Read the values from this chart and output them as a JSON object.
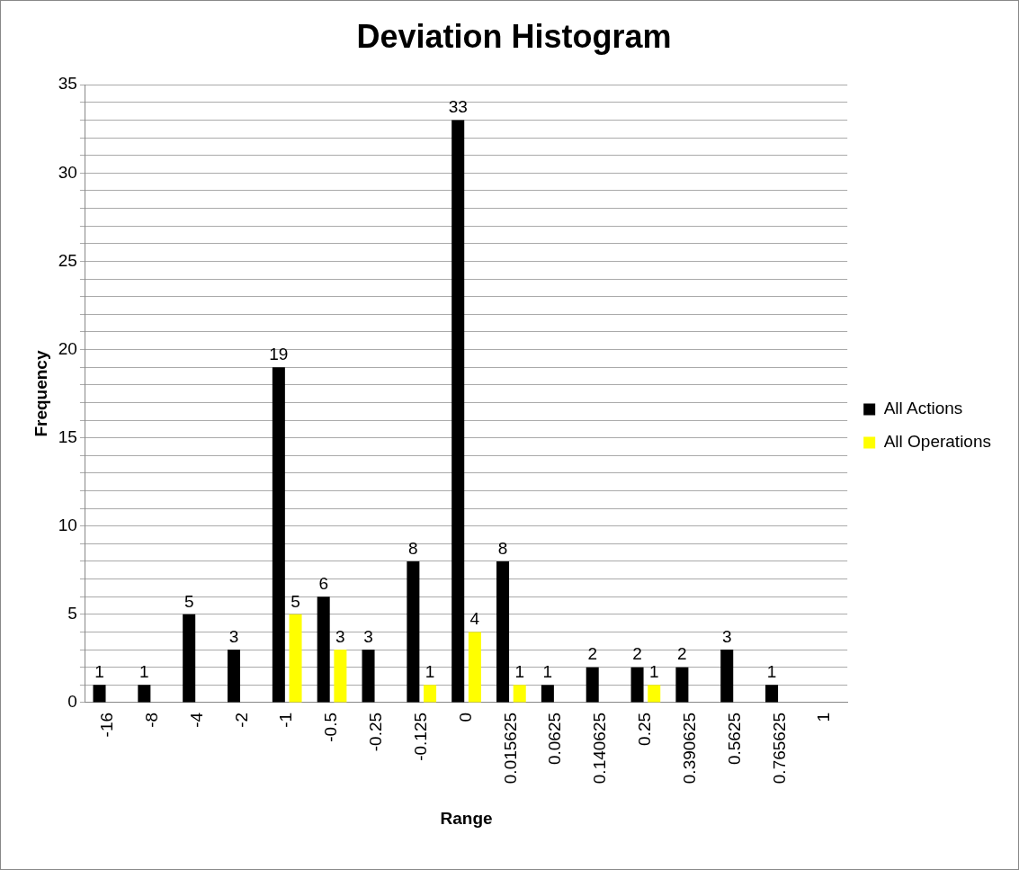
{
  "chart_data": {
    "type": "bar",
    "title": "Deviation Histogram",
    "xlabel": "Range",
    "ylabel": "Frequency",
    "categories": [
      "-16",
      "-8",
      "-4",
      "-2",
      "-1",
      "-0.5",
      "-0.25",
      "-0.125",
      "0",
      "0.015625",
      "0.0625",
      "0.140625",
      "0.25",
      "0.390625",
      "0.5625",
      "0.765625",
      "1"
    ],
    "series": [
      {
        "name": "All Actions",
        "color": "#000000",
        "values": [
          1,
          1,
          5,
          3,
          19,
          6,
          3,
          8,
          33,
          8,
          1,
          2,
          2,
          2,
          3,
          1,
          null
        ]
      },
      {
        "name": "All Operations",
        "color": "#ffff00",
        "values": [
          null,
          null,
          null,
          null,
          5,
          3,
          null,
          1,
          4,
          1,
          null,
          null,
          1,
          null,
          null,
          null,
          null
        ]
      }
    ],
    "ylim": [
      0,
      35
    ],
    "yticks": [
      0,
      {
        "value": 1,
        "label": null
      },
      {
        "value": 2,
        "label": null
      },
      {
        "value": 3,
        "label": null
      },
      {
        "value": 4,
        "label": null
      },
      5,
      {
        "value": 6,
        "label": null
      },
      {
        "value": 7,
        "label": null
      },
      {
        "value": 8,
        "label": null
      },
      {
        "value": 9,
        "label": null
      },
      10,
      {
        "value": 11,
        "label": null
      },
      {
        "value": 12,
        "label": null
      },
      {
        "value": 13,
        "label": null
      },
      {
        "value": 14,
        "label": null
      },
      15,
      {
        "value": 16,
        "label": null
      },
      {
        "value": 17,
        "label": null
      },
      {
        "value": 18,
        "label": null
      },
      {
        "value": 19,
        "label": null
      },
      20,
      {
        "value": 21,
        "label": null
      },
      {
        "value": 22,
        "label": null
      },
      {
        "value": 23,
        "label": null
      },
      {
        "value": 24,
        "label": null
      },
      25,
      {
        "value": 26,
        "label": null
      },
      {
        "value": 27,
        "label": null
      },
      {
        "value": 28,
        "label": null
      },
      {
        "value": 29,
        "label": null
      },
      30,
      {
        "value": 31,
        "label": null
      },
      {
        "value": 32,
        "label": null
      },
      {
        "value": 33,
        "label": null
      },
      {
        "value": 34,
        "label": null
      },
      35
    ],
    "grid": "y",
    "legend": "right",
    "data_labels": true
  }
}
